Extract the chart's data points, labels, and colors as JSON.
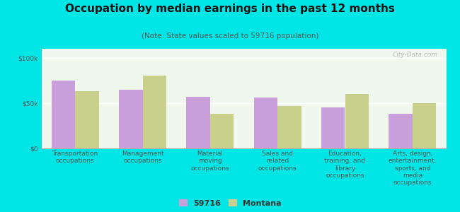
{
  "title": "Occupation by median earnings in the past 12 months",
  "subtitle": "(Note: State values scaled to 59716 population)",
  "categories": [
    "Transportation\noccupations",
    "Management\noccupations",
    "Material\nmoving\noccupations",
    "Sales and\nrelated\noccupations",
    "Education,\ntraining, and\nlibrary\noccupations",
    "Arts, design,\nentertainment,\nsports, and\nmedia\noccupations"
  ],
  "values_59716": [
    75000,
    65000,
    57000,
    56000,
    45000,
    38000
  ],
  "values_montana": [
    63000,
    80000,
    38000,
    47000,
    60000,
    50000
  ],
  "color_59716": "#c9a0dc",
  "color_montana": "#c8d08c",
  "bar_width": 0.35,
  "ylim": [
    0,
    110000
  ],
  "yticks": [
    0,
    50000,
    100000
  ],
  "ytick_labels": [
    "$0",
    "$50k",
    "$100k"
  ],
  "legend_labels": [
    "59716",
    "Montana"
  ],
  "background_color": "#00e5e5",
  "plot_bg": "#f0f8ee",
  "watermark": "City-Data.com",
  "title_fontsize": 11,
  "subtitle_fontsize": 7.5,
  "tick_label_fontsize": 6.5,
  "legend_fontsize": 8
}
